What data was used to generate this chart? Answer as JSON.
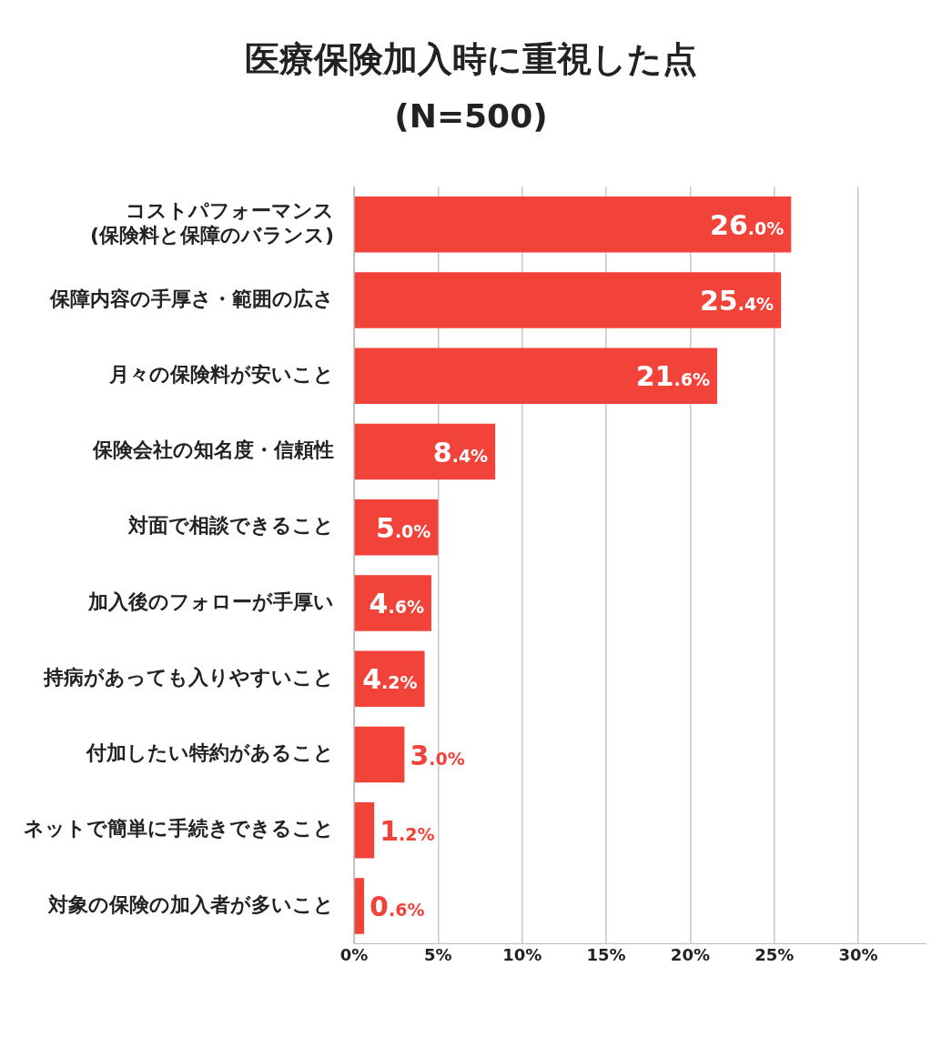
{
  "chart_data": {
    "type": "bar",
    "orientation": "horizontal",
    "title": "医療保険加入時に重視した点",
    "subtitle": "(N=500)",
    "categories": [
      "コストパフォーマンス\n(保険料と保障のバランス)",
      "保障内容の手厚さ・範囲の広さ",
      "月々の保険料が安いこと",
      "保険会社の知名度・信頼性",
      "対面で相談できること",
      "加入後のフォローが手厚い",
      "持病があっても入りやすいこと",
      "付加したい特約があること",
      "ネットで簡単に手続きできること",
      "対象の保険の加入者が多いこと"
    ],
    "values": [
      26.0,
      25.4,
      21.6,
      8.4,
      5.0,
      4.6,
      4.2,
      3.0,
      1.2,
      0.6
    ],
    "value_labels": [
      "26.0%",
      "25.4%",
      "21.6%",
      "8.4%",
      "5.0%",
      "4.6%",
      "4.2%",
      "3.0%",
      "1.2%",
      "0.6%"
    ],
    "color": "#f2433a",
    "xlim": [
      0,
      34
    ],
    "xticks": [
      {
        "value": 0,
        "label": "0%"
      },
      {
        "value": 5,
        "label": "5%"
      },
      {
        "value": 10,
        "label": "10%"
      },
      {
        "value": 15,
        "label": "15%"
      },
      {
        "value": 20,
        "label": "20%"
      },
      {
        "value": 25,
        "label": "25%"
      },
      {
        "value": 30,
        "label": "30%"
      }
    ],
    "grid": "x",
    "legend": false
  }
}
